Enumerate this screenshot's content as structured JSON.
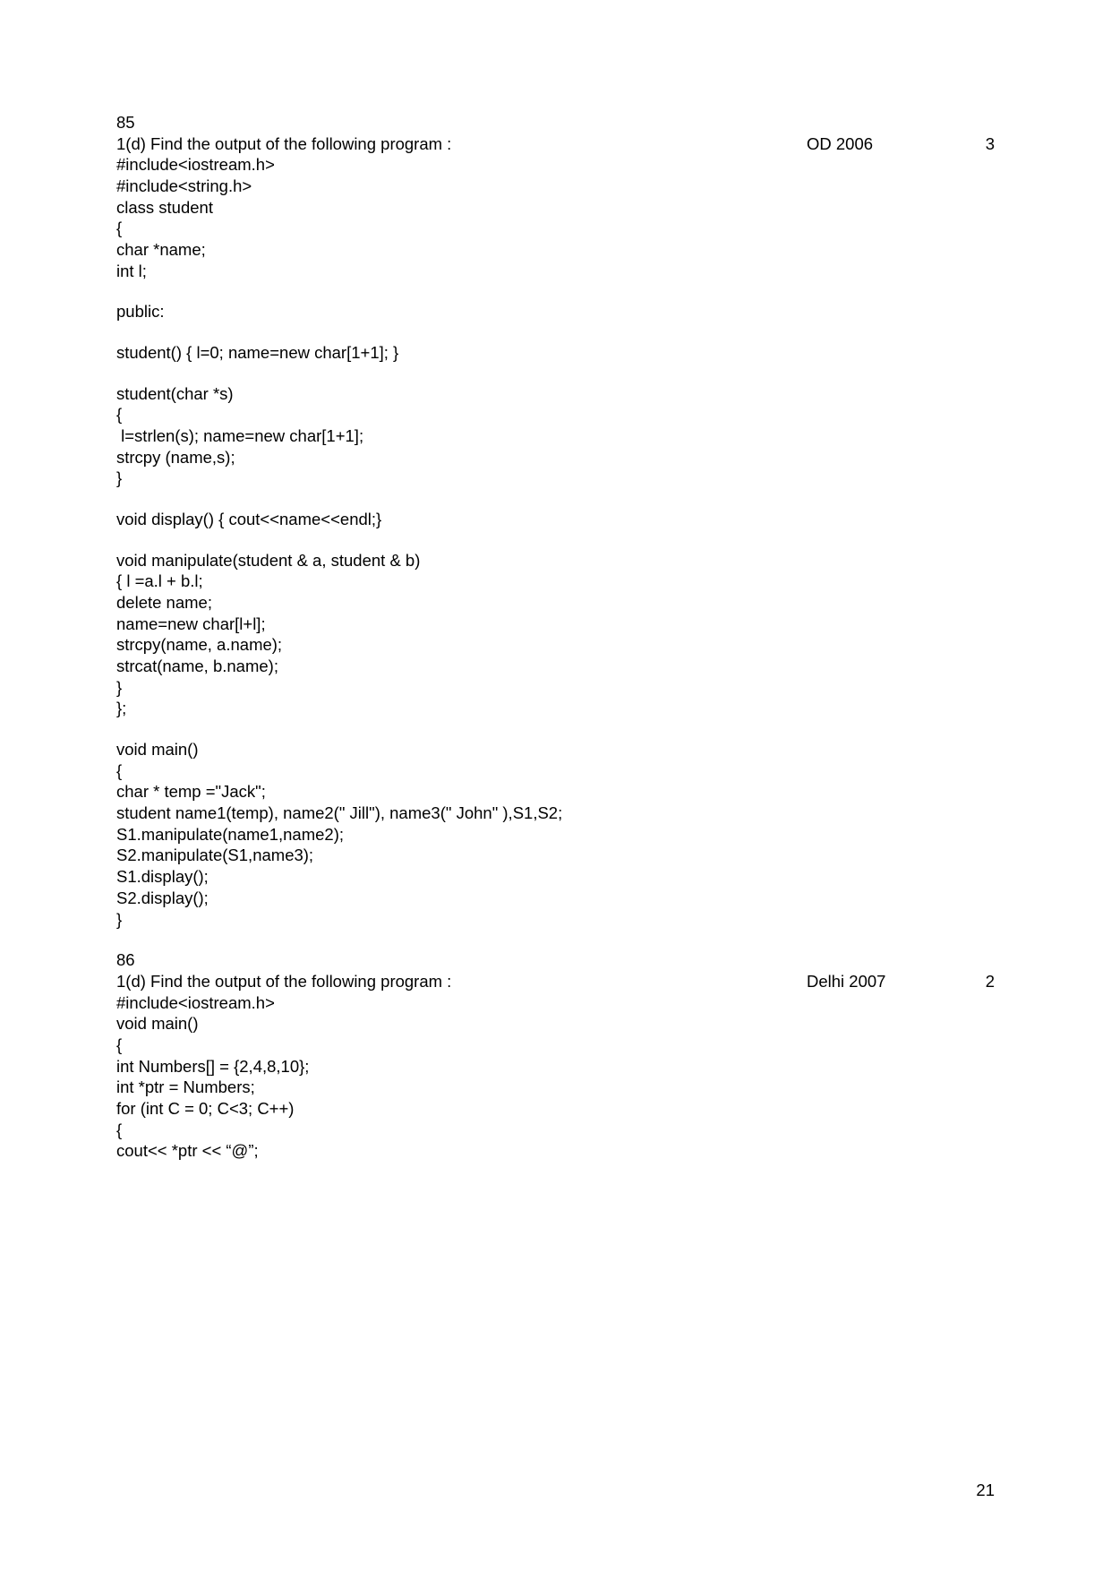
{
  "q85": {
    "number": "85",
    "question_label": "1(d) Find the output of the following program :",
    "exam": "OD 2006",
    "marks": "3",
    "code": [
      "#include<iostream.h>",
      "#include<string.h>",
      "class student",
      "{",
      "char *name;",
      "int l;",
      "",
      "public:",
      "",
      "student() { l=0; name=new char[1+1]; }",
      "",
      "student(char *s)",
      "{",
      " l=strlen(s); name=new char[1+1];",
      "strcpy (name,s);",
      "}",
      "",
      "void display() { cout<<name<<endl;}",
      "",
      "void manipulate(student & a, student & b)",
      "{ l =a.l + b.l;",
      "delete name;",
      "name=new char[l+l];",
      "strcpy(name, a.name);",
      "strcat(name, b.name);",
      "}",
      "};",
      "",
      "void main()",
      "{",
      "char * temp =\"Jack\";",
      "student name1(temp), name2(\" Jill\"), name3(\" John\" ),S1,S2;",
      "S1.manipulate(name1,name2);",
      "S2.manipulate(S1,name3);",
      "S1.display();",
      "S2.display();",
      "}"
    ]
  },
  "q86": {
    "number": "86",
    "question_label": "1(d) Find the output of the following program :",
    "exam": "Delhi 2007",
    "marks": "2",
    "code": [
      "#include<iostream.h>",
      "void main()",
      "{",
      "int Numbers[] = {2,4,8,10};",
      "int *ptr = Numbers;",
      "for (int C = 0; C<3; C++)",
      "{",
      "cout<< *ptr << “@”;"
    ]
  },
  "page_number": "21"
}
